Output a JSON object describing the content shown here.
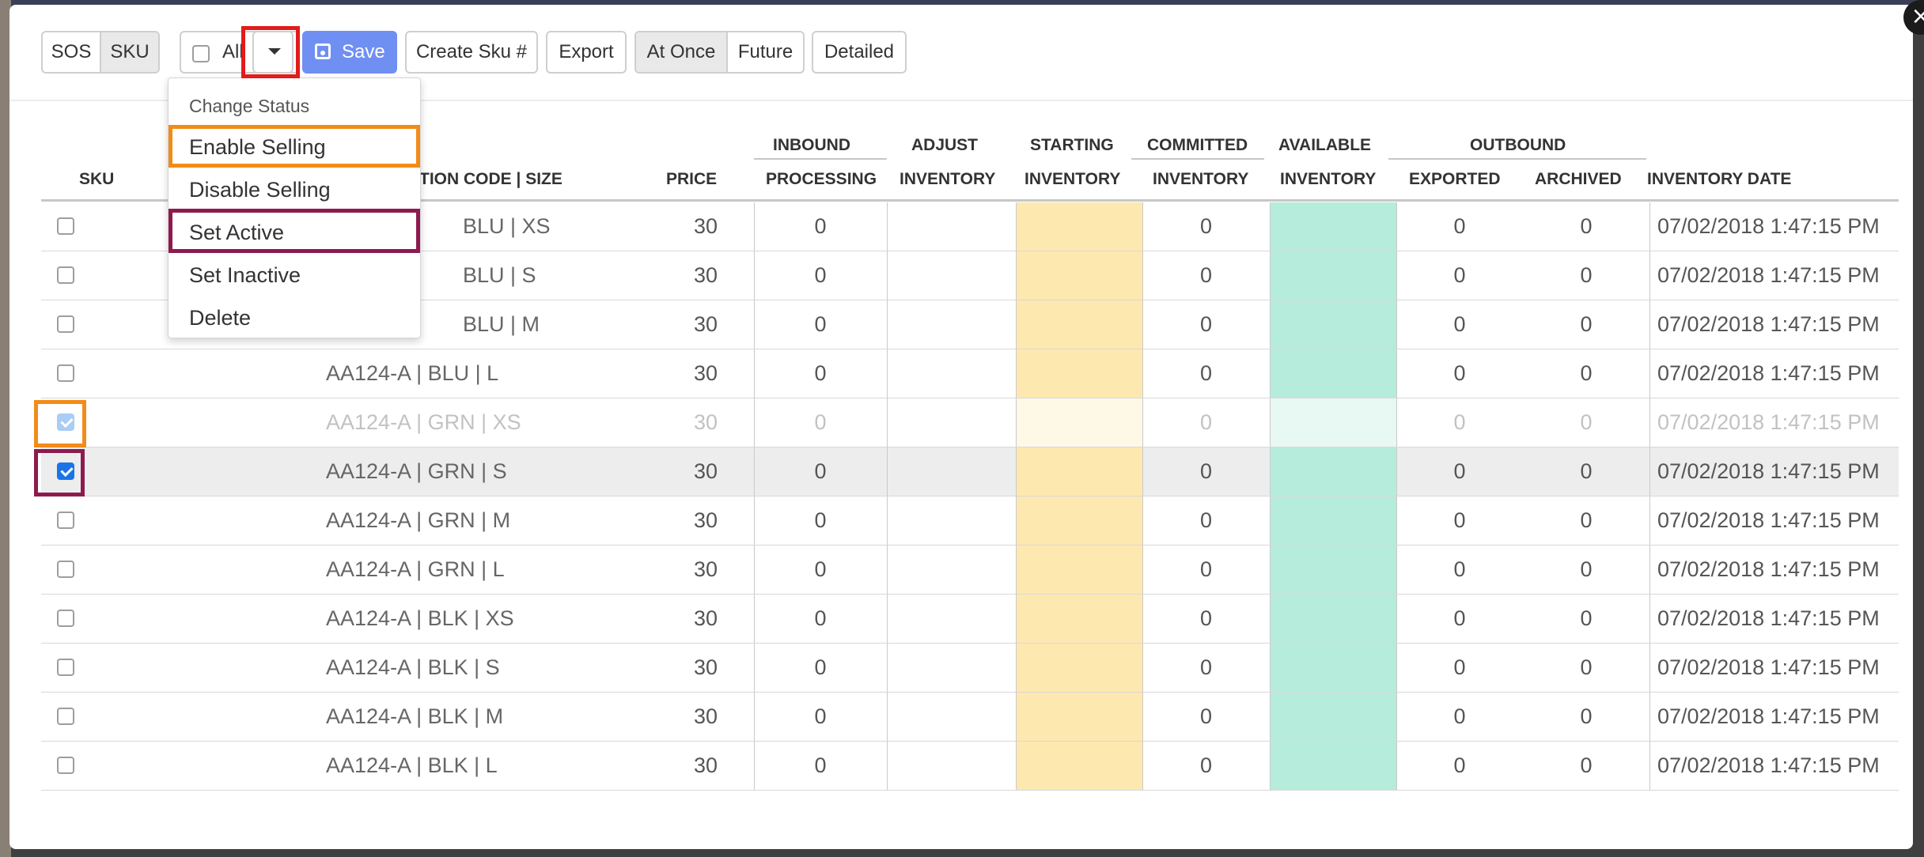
{
  "toolbar": {
    "view_toggle": [
      "SOS",
      "SKU"
    ],
    "view_active": "SKU",
    "all_label": "All",
    "save_label": "Save",
    "create_sku_label": "Create Sku #",
    "export_label": "Export",
    "timing_toggle": [
      "At Once",
      "Future"
    ],
    "timing_active": "At Once",
    "detailed_label": "Detailed"
  },
  "dropdown": {
    "header": "Change Status",
    "items": [
      "Enable Selling",
      "Disable Selling",
      "Set Active",
      "Set Inactive",
      "Delete"
    ]
  },
  "table": {
    "group_headers": {
      "inbound": "INBOUND",
      "adjust": "ADJUST",
      "starting": "STARTING",
      "committed": "COMMITTED",
      "available": "AVAILABLE",
      "outbound": "OUTBOUND"
    },
    "columns": {
      "sku": "SKU",
      "code": "TION CODE | SIZE",
      "price": "PRICE",
      "processing": "PROCESSING",
      "adjust_inventory": "INVENTORY",
      "starting_inventory": "INVENTORY",
      "committed_inventory": "INVENTORY",
      "available_inventory": "INVENTORY",
      "exported": "EXPORTED",
      "archived": "ARCHIVED",
      "inventory_date": "INVENTORY DATE"
    },
    "rows": [
      {
        "code": "BLU | XS",
        "price": "30",
        "processing": "0",
        "committed": "0",
        "exported": "0",
        "archived": "0",
        "date": "07/02/2018 1:47:15 PM"
      },
      {
        "code": "BLU | S",
        "price": "30",
        "processing": "0",
        "committed": "0",
        "exported": "0",
        "archived": "0",
        "date": "07/02/2018 1:47:15 PM"
      },
      {
        "code": "BLU | M",
        "price": "30",
        "processing": "0",
        "committed": "0",
        "exported": "0",
        "archived": "0",
        "date": "07/02/2018 1:47:15 PM"
      },
      {
        "code": "AA124-A | BLU | L",
        "price": "30",
        "processing": "0",
        "committed": "0",
        "exported": "0",
        "archived": "0",
        "date": "07/02/2018 1:47:15 PM"
      },
      {
        "code": "AA124-A | GRN | XS",
        "price": "30",
        "processing": "0",
        "committed": "0",
        "exported": "0",
        "archived": "0",
        "date": "07/02/2018 1:47:15 PM"
      },
      {
        "code": "AA124-A | GRN | S",
        "price": "30",
        "processing": "0",
        "committed": "0",
        "exported": "0",
        "archived": "0",
        "date": "07/02/2018 1:47:15 PM"
      },
      {
        "code": "AA124-A | GRN | M",
        "price": "30",
        "processing": "0",
        "committed": "0",
        "exported": "0",
        "archived": "0",
        "date": "07/02/2018 1:47:15 PM"
      },
      {
        "code": "AA124-A | GRN | L",
        "price": "30",
        "processing": "0",
        "committed": "0",
        "exported": "0",
        "archived": "0",
        "date": "07/02/2018 1:47:15 PM"
      },
      {
        "code": "AA124-A | BLK | XS",
        "price": "30",
        "processing": "0",
        "committed": "0",
        "exported": "0",
        "archived": "0",
        "date": "07/02/2018 1:47:15 PM"
      },
      {
        "code": "AA124-A | BLK | S",
        "price": "30",
        "processing": "0",
        "committed": "0",
        "exported": "0",
        "archived": "0",
        "date": "07/02/2018 1:47:15 PM"
      },
      {
        "code": "AA124-A | BLK | M",
        "price": "30",
        "processing": "0",
        "committed": "0",
        "exported": "0",
        "archived": "0",
        "date": "07/02/2018 1:47:15 PM"
      },
      {
        "code": "AA124-A | BLK | L",
        "price": "30",
        "processing": "0",
        "committed": "0",
        "exported": "0",
        "archived": "0",
        "date": "07/02/2018 1:47:15 PM"
      }
    ]
  },
  "colors": {
    "starting_fill": "#fde8b0",
    "available_fill": "#b6ecdc",
    "save_button": "#6f8ff3",
    "highlight_red": "#e21b1b",
    "highlight_orange": "#f28c18",
    "highlight_maroon": "#8e1a4e"
  }
}
